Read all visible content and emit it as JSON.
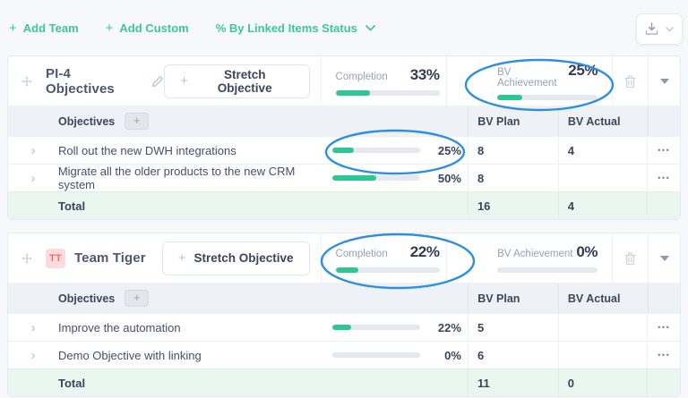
{
  "colors": {
    "accent_green": "#2cc795",
    "link_green": "#3cc79d",
    "annotation_blue": "#2e8fe2",
    "table_header_bg": "#eef1f6",
    "total_row_bg": "#e9f7f0"
  },
  "icons": {
    "plus": "+",
    "row_chevron": "›",
    "ellipsis": "•••"
  },
  "toolbar": {
    "add_team": "Add Team",
    "add_custom": "Add Custom",
    "percent_mode": "% By Linked Items Status"
  },
  "table_columns": {
    "objectives": "Objectives",
    "bv_plan": "BV Plan",
    "bv_actual": "BV Actual"
  },
  "panels": [
    {
      "title": "PI-4 Objectives",
      "stretch_label": "Stretch Objective",
      "completion": {
        "label": "Completion",
        "value": "33%",
        "percent": 33
      },
      "bv": {
        "label": "BV Achievement",
        "value": "25%",
        "percent": 25
      },
      "rows": [
        {
          "name": "Roll out the new DWH integrations",
          "progress_label": "25%",
          "percent": 25,
          "bv_plan": "8",
          "bv_actual": "4"
        },
        {
          "name": "Migrate all the older products to the new CRM system",
          "progress_label": "50%",
          "percent": 50,
          "bv_plan": "8",
          "bv_actual": ""
        }
      ],
      "total": {
        "label": "Total",
        "bv_plan": "16",
        "bv_actual": "4"
      }
    },
    {
      "title": "Team Tiger",
      "avatar": "TT",
      "stretch_label": "Stretch Objective",
      "completion": {
        "label": "Completion",
        "value": "22%",
        "percent": 22
      },
      "bv": {
        "label": "BV Achievement",
        "value": "0%",
        "percent": 0
      },
      "rows": [
        {
          "name": "Improve the automation",
          "progress_label": "22%",
          "percent": 22,
          "bv_plan": "5",
          "bv_actual": ""
        },
        {
          "name": "Demo Objective with linking",
          "progress_label": "0%",
          "percent": 0,
          "bv_plan": "6",
          "bv_actual": ""
        }
      ],
      "total": {
        "label": "Total",
        "bv_plan": "11",
        "bv_actual": "0"
      }
    }
  ],
  "annotations": [
    {
      "target": "panel-1-bv-achievement-metric",
      "shape": "ellipse",
      "color": "#2e8fe2"
    },
    {
      "target": "panel-1-row-1-progress",
      "shape": "ellipse",
      "color": "#2e8fe2"
    },
    {
      "target": "panel-2-completion-metric",
      "shape": "ellipse",
      "color": "#2e8fe2"
    }
  ]
}
